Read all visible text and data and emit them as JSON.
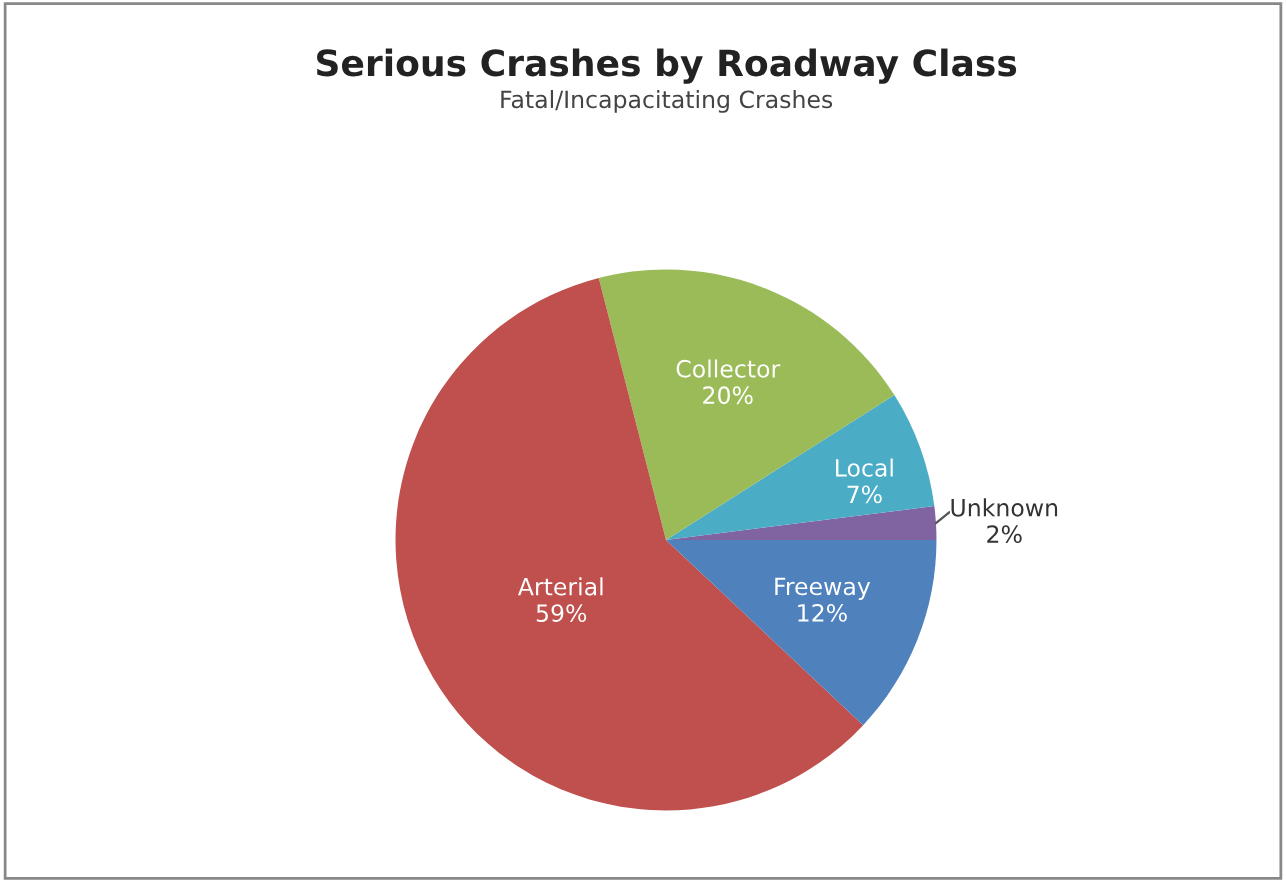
{
  "chart_data": {
    "type": "pie",
    "title": "Serious Crashes by Roadway Class",
    "subtitle": "Fatal/Incapacitating Crashes",
    "categories": [
      "Unknown",
      "Local",
      "Collector",
      "Arterial",
      "Freeway"
    ],
    "values": [
      2,
      7,
      20,
      59,
      12
    ],
    "value_labels": [
      "2%",
      "7%",
      "20%",
      "59%",
      "12%"
    ],
    "colors": [
      "#8064a2",
      "#4bacc6",
      "#9bbb59",
      "#c0504d",
      "#4f81bd"
    ],
    "legend": false
  }
}
